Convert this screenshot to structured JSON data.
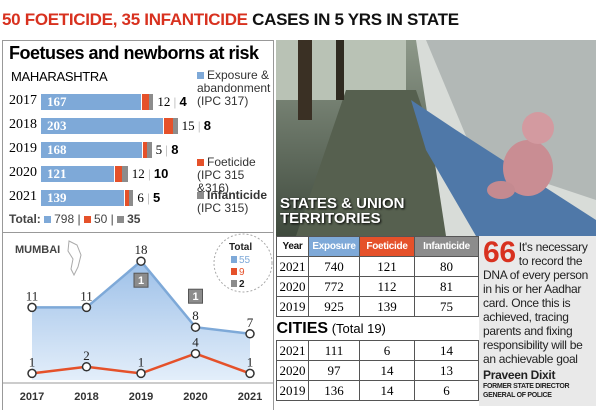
{
  "headline": {
    "red": "50 FOETICIDE, 35 INFANTICIDE",
    "black": "CASES IN 5 YRS IN STATE"
  },
  "colors": {
    "exposure": "#7ea9d8",
    "foeticide": "#e5512a",
    "infanticide": "#8c8c8c",
    "accent": "#d8311f"
  },
  "chart_data": [
    {
      "type": "bar",
      "title": "Foetuses and newborns at risk",
      "subtitle": "MAHARASHTRA",
      "orientation": "horizontal-stacked",
      "categories": [
        "2017",
        "2018",
        "2019",
        "2020",
        "2021"
      ],
      "series": [
        {
          "name": "Exposure & abandonment (IPC 317)",
          "values": [
            167,
            203,
            168,
            121,
            139
          ]
        },
        {
          "name": "Foeticide (IPC 315 &316)",
          "values": [
            12,
            15,
            5,
            12,
            6
          ]
        },
        {
          "name": "Infanticide (IPC 315)",
          "values": [
            4,
            8,
            8,
            10,
            5
          ]
        }
      ],
      "legend_names": [
        "Exposure &",
        "abandonment",
        "(IPC 317)",
        "Foeticide",
        "(IPC 315 &316)",
        "Infanticide",
        "(IPC 315)"
      ],
      "totals_label": "Total:",
      "totals": [
        "798",
        "50",
        "35"
      ]
    },
    {
      "type": "line",
      "title": "MUMBAI",
      "categories": [
        "2017",
        "2018",
        "2019",
        "2020",
        "2021"
      ],
      "series": [
        {
          "values": [
            11,
            11,
            18,
            8,
            7
          ]
        },
        {
          "values": [
            1,
            2,
            1,
            4,
            1
          ]
        },
        {
          "values": [
            0,
            0,
            1,
            1,
            0
          ]
        }
      ],
      "infanticide_labels": [
        {
          "year": "2019",
          "value": "1"
        },
        {
          "year": "2020",
          "value": "1"
        }
      ],
      "legend_title": "Total",
      "totals": [
        "55",
        "9",
        "2"
      ]
    }
  ],
  "photo": {
    "caption_line1": "STATES & UNION",
    "caption_line2": "TERRITORIES"
  },
  "states_table": {
    "headers": [
      "Year",
      "Exposure",
      "Foeticide",
      "Infanticide"
    ],
    "rows": [
      [
        "2021",
        "740",
        "121",
        "80"
      ],
      [
        "2020",
        "772",
        "112",
        "81"
      ],
      [
        "2019",
        "925",
        "139",
        "75"
      ]
    ]
  },
  "cities": {
    "title": "CITIES",
    "subtitle": "(Total 19)",
    "rows": [
      [
        "2021",
        "111",
        "6",
        "14"
      ],
      [
        "2020",
        "97",
        "14",
        "13"
      ],
      [
        "2019",
        "136",
        "14",
        "6"
      ]
    ]
  },
  "quote": {
    "mark": "66",
    "text": "It's necessary to record the DNA of every person in his or her Aadhar card. Once this is achieved, tracing parents and fixing responsibility will be an achievable goal",
    "author": "Praveen Dixit",
    "role": "FORMER STATE DIRECTOR GENERAL OF POLICE"
  }
}
